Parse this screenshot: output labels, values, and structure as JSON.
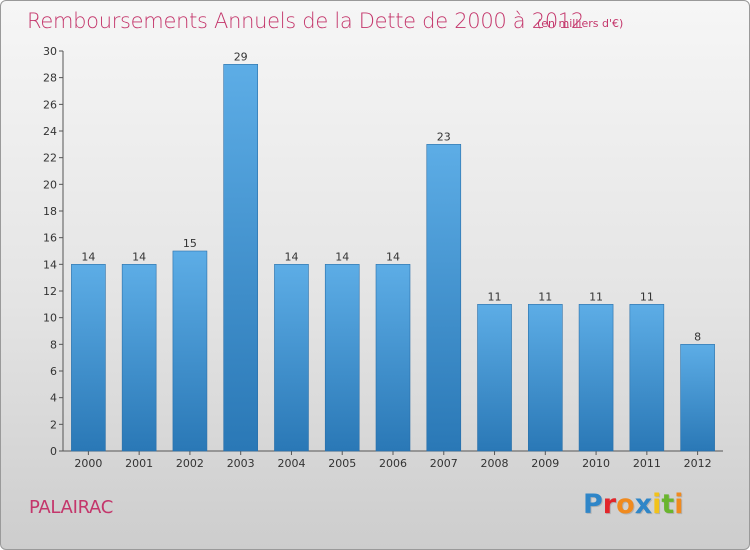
{
  "header": {
    "title": "Remboursements Annuels de la Dette de 2000 à 2012",
    "unit": "(en milliers d'€)"
  },
  "footer": {
    "commune": "PALAIRAC",
    "logo_text": "Proxiti"
  },
  "colors": {
    "accent": "#c4366b",
    "bar_top": "#5dade6",
    "bar_bottom": "#2a78b6",
    "logo_letters": [
      "#2f86c8",
      "#e2262b",
      "#f08a1e",
      "#2f86c8",
      "#f2c21a",
      "#6ab52e",
      "#f08a1e"
    ]
  },
  "chart_data": {
    "type": "bar",
    "categories": [
      "2000",
      "2001",
      "2002",
      "2003",
      "2004",
      "2005",
      "2006",
      "2007",
      "2008",
      "2009",
      "2010",
      "2011",
      "2012"
    ],
    "values": [
      14,
      14,
      15,
      29,
      14,
      14,
      14,
      23,
      11,
      11,
      11,
      11,
      8
    ],
    "title": "Remboursements Annuels de la Dette de 2000 à 2012",
    "xlabel": "",
    "ylabel": "",
    "ylim": [
      0,
      30
    ],
    "yticks": [
      0,
      2,
      4,
      6,
      8,
      10,
      12,
      14,
      16,
      18,
      20,
      22,
      24,
      26,
      28,
      30
    ],
    "grid": false,
    "legend": "none"
  }
}
